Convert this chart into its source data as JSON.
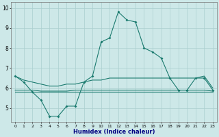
{
  "x": [
    0,
    1,
    2,
    3,
    4,
    5,
    6,
    7,
    8,
    9,
    10,
    11,
    12,
    13,
    14,
    15,
    16,
    17,
    18,
    19,
    20,
    21,
    22,
    23
  ],
  "y_main": [
    6.6,
    6.3,
    5.8,
    5.4,
    4.6,
    4.6,
    5.1,
    5.1,
    6.3,
    6.6,
    8.3,
    8.5,
    9.8,
    9.4,
    9.3,
    8.0,
    7.8,
    7.5,
    6.5,
    5.9,
    5.9,
    6.5,
    6.5,
    5.9
  ],
  "y_upper": [
    6.6,
    6.4,
    6.3,
    6.2,
    6.1,
    6.1,
    6.2,
    6.2,
    6.3,
    6.4,
    6.4,
    6.5,
    6.5,
    6.5,
    6.5,
    6.5,
    6.5,
    6.5,
    6.5,
    6.5,
    6.5,
    6.5,
    6.6,
    6.0
  ],
  "y_mid_upper": [
    5.9,
    5.9,
    5.9,
    5.85,
    5.85,
    5.85,
    5.85,
    5.9,
    5.9,
    5.9,
    5.9,
    5.9,
    5.9,
    5.9,
    5.9,
    5.9,
    5.9,
    5.9,
    5.9,
    5.9,
    5.9,
    5.9,
    5.9,
    5.85
  ],
  "y_mid_lower": [
    5.8,
    5.8,
    5.8,
    5.8,
    5.8,
    5.8,
    5.8,
    5.8,
    5.8,
    5.8,
    5.8,
    5.8,
    5.8,
    5.8,
    5.8,
    5.8,
    5.8,
    5.8,
    5.8,
    5.8,
    5.8,
    5.8,
    5.8,
    5.8
  ],
  "color": "#1a7a6e",
  "bg_color": "#cde8e8",
  "grid_color": "#aacfcf",
  "xlabel": "Humidex (Indice chaleur)",
  "ylim_min": 4.3,
  "ylim_max": 10.3,
  "xlim_min": -0.5,
  "xlim_max": 23.5
}
